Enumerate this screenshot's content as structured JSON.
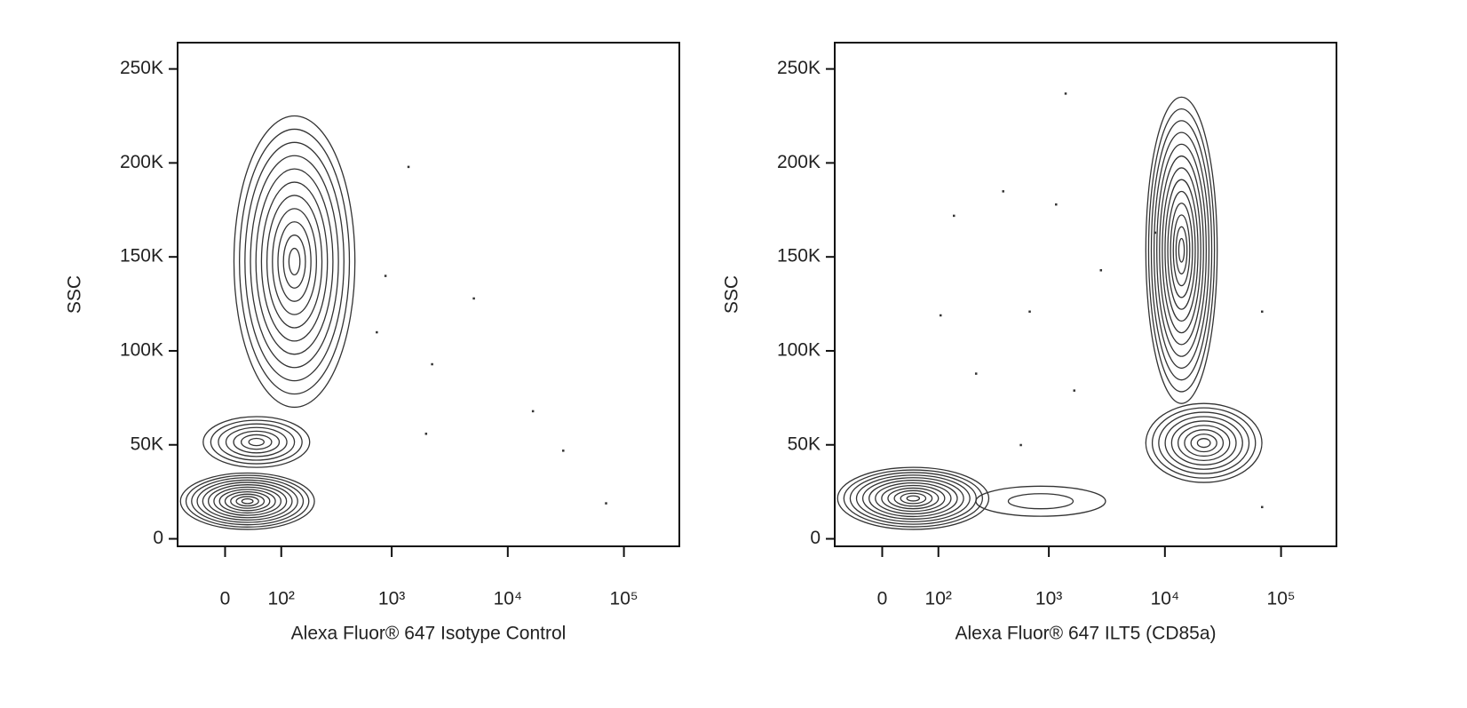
{
  "chart_data": [
    {
      "type": "contour",
      "xscale": "biex",
      "ylabel": "SSC",
      "xlabel": "Alexa Fluor® 647 Isotype Control",
      "color": "#333333",
      "xlim": [
        -80,
        300000
      ],
      "ylim": [
        -4000,
        264000
      ],
      "xticks": [
        0,
        {
          "value": 100,
          "label": "10²"
        },
        {
          "value": 1000,
          "label": "10³"
        },
        {
          "value": 10000,
          "label": "10⁴"
        },
        {
          "value": 100000,
          "label": "10⁵"
        }
      ],
      "yticks": [
        0,
        {
          "value": 50000,
          "label": "50K"
        },
        {
          "value": 100000,
          "label": "100K"
        },
        {
          "value": 150000,
          "label": "150K"
        },
        {
          "value": 200000,
          "label": "200K"
        },
        {
          "value": 250000,
          "label": "250K"
        }
      ],
      "populations": [
        {
          "x": [
            -74,
            210
          ],
          "y": [
            5000,
            35000
          ],
          "levels": 12
        },
        {
          "x": [
            -33,
            190
          ],
          "y": [
            38000,
            65000
          ],
          "levels": 7
        },
        {
          "x": [
            13,
            480
          ],
          "y": [
            70000,
            225000
          ],
          "levels": 11
        }
      ],
      "points": {
        "x": [
          1390,
          5080,
          2220,
          16400,
          1970,
          29900,
          69900,
          880,
          740
        ],
        "y": [
          198000,
          128000,
          93000,
          68000,
          56000,
          47000,
          19000,
          140000,
          110000
        ]
      }
    },
    {
      "type": "contour",
      "xscale": "biex",
      "ylabel": "SSC",
      "xlabel": "Alexa Fluor® 647 ILT5 (CD85a)",
      "color": "#333333",
      "xlim": [
        -80,
        300000
      ],
      "ylim": [
        -4000,
        264000
      ],
      "xticks": [
        0,
        {
          "value": 100,
          "label": "10²"
        },
        {
          "value": 1000,
          "label": "10³"
        },
        {
          "value": 10000,
          "label": "10⁴"
        },
        {
          "value": 100000,
          "label": "10⁵"
        }
      ],
      "yticks": [
        0,
        {
          "value": 50000,
          "label": "50K"
        },
        {
          "value": 100000,
          "label": "100K"
        },
        {
          "value": 150000,
          "label": "150K"
        },
        {
          "value": 200000,
          "label": "200K"
        },
        {
          "value": 250000,
          "label": "250K"
        }
      ],
      "populations": [
        {
          "x": [
            -74,
            300
          ],
          "y": [
            5000,
            38000
          ],
          "levels": 12
        },
        {
          "x": [
            230,
            3080
          ],
          "y": [
            12000,
            28000
          ],
          "levels": 2
        },
        {
          "x": [
            6850,
            68400
          ],
          "y": [
            30000,
            72000
          ],
          "levels": 9
        },
        {
          "x": [
            6850,
            28200
          ],
          "y": [
            72000,
            235000
          ],
          "levels": 13
        }
      ],
      "points": {
        "x": [
          1390,
          1150,
          400,
          143,
          680,
          2800,
          230,
          1650,
          105,
          8200,
          68400,
          68400,
          570
        ],
        "y": [
          237000,
          178000,
          185000,
          172000,
          121000,
          143000,
          88000,
          79000,
          119000,
          163000,
          121000,
          17000,
          50000
        ]
      }
    }
  ]
}
